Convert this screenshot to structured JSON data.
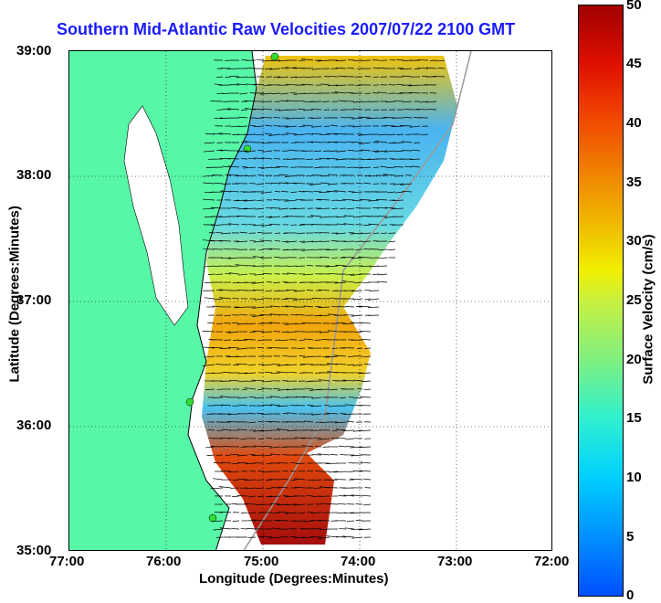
{
  "title": "Southern Mid-Atlantic Raw Velocities 2007/07/22 2100 GMT",
  "axes": {
    "xlabel": "Longitude (Degrees:Minutes)",
    "ylabel": "Latitude (Degrees:Minutes)",
    "xticks": [
      "77:00",
      "76:00",
      "75:00",
      "74:00",
      "73:00",
      "72:00"
    ],
    "yticks": [
      "39:00",
      "38:00",
      "37:00",
      "36:00",
      "35:00"
    ]
  },
  "colorbar": {
    "label": "Surface Velocity (cm/s)",
    "ticks": [
      "50",
      "45",
      "40",
      "35",
      "30",
      "25",
      "20",
      "15",
      "10",
      "5",
      "0"
    ],
    "range": [
      0,
      50
    ]
  },
  "colors": {
    "land": "#57f7a8",
    "water": "#ffffff",
    "title": "#1a1aff",
    "station": "#33dd33"
  }
}
